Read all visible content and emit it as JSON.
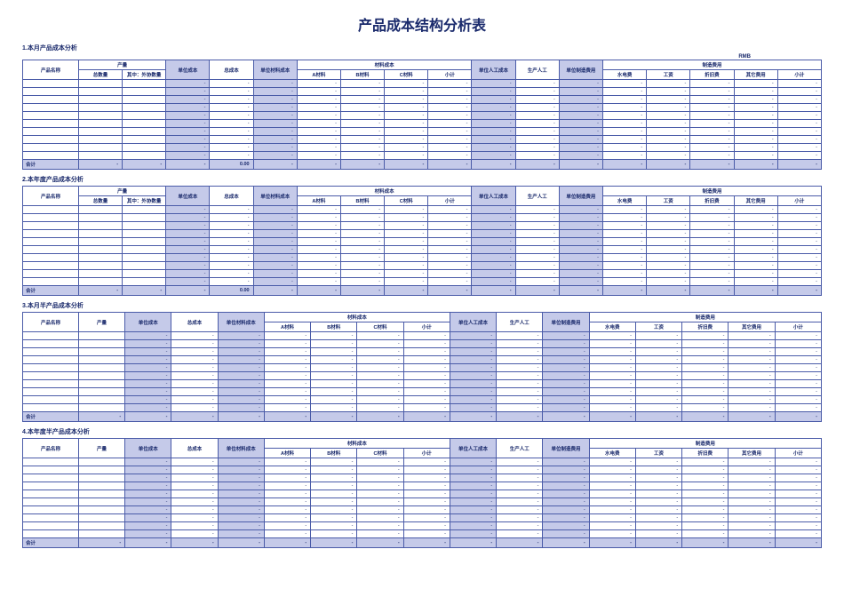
{
  "title": "产品成本结构分析表",
  "currency": "RMB",
  "sections": {
    "s1": {
      "label": "1.本月产品成本分析"
    },
    "s2": {
      "label": "2.本年度产品成本分析"
    },
    "s3": {
      "label": "3.本月半产品成本分析"
    },
    "s4": {
      "label": "4.本年度半产品成本分析"
    }
  },
  "headers": {
    "product_name": "产品名称",
    "output": "产量",
    "output_total": "总数量",
    "output_of_which": "其中：外协数量",
    "output_qty": "产量",
    "unit_cost": "单位成本",
    "total_cost": "总成本",
    "unit_material_cost": "单位材料成本",
    "material_cost": "材料成本",
    "mat_a": "A材料",
    "mat_b": "B材料",
    "mat_c": "C材料",
    "subtotal": "小计",
    "unit_labor_cost": "单位人工成本",
    "labor": "生产人工",
    "unit_mfg_cost": "单位制造费用",
    "mfg_cost": "制造费用",
    "utility": "水电费",
    "salary": "工资",
    "depreciation": "折旧费",
    "other": "其它费用",
    "total_row": "合计"
  },
  "values": {
    "dash": "-",
    "zero": "0.00"
  },
  "style": {
    "header_bg": "#ffffff",
    "shaded_bg": "#c5cae9",
    "border_color": "#4a5ba8",
    "text_color": "#1a2a6c",
    "title_fontsize": 16,
    "body_fontsize": 6,
    "data_rows_s1s2": 10,
    "data_rows_s3s4": 10
  }
}
